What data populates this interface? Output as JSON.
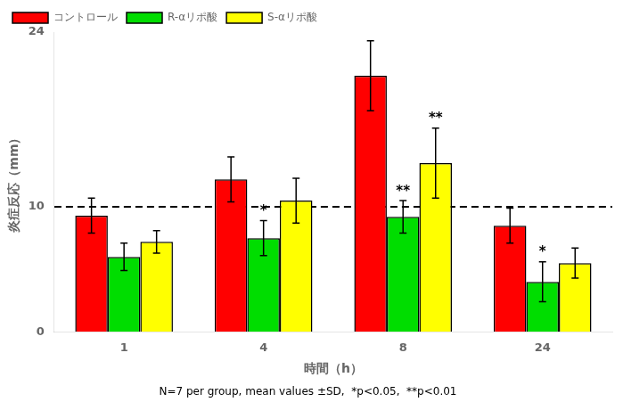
{
  "chart_data": {
    "type": "bar",
    "categories": [
      "1",
      "4",
      "8",
      "24"
    ],
    "series": [
      {
        "name": "コントロール",
        "color": "#ff0000",
        "values": [
          9.3,
          12.2,
          20.5,
          8.5
        ],
        "errors": [
          1.4,
          1.8,
          2.8,
          1.4
        ]
      },
      {
        "name": "R-αリポ酸",
        "color": "#00dd00",
        "values": [
          6.0,
          7.5,
          9.2,
          4.0
        ],
        "errors": [
          1.1,
          1.4,
          1.3,
          1.6
        ]
      },
      {
        "name": "S-αリポ酸",
        "color": "#ffff00",
        "values": [
          7.2,
          10.5,
          13.5,
          5.5
        ],
        "errors": [
          0.9,
          1.8,
          2.8,
          1.2
        ]
      }
    ],
    "annotations": [
      {
        "text": "*",
        "series": "R-αリポ酸",
        "category": "4"
      },
      {
        "text": "**",
        "series": "R-αリポ酸",
        "category": "8"
      },
      {
        "text": "**",
        "series": "S-αリポ酸",
        "category": "8"
      },
      {
        "text": "*",
        "series": "R-αリポ酸",
        "category": "24"
      }
    ],
    "hline": {
      "y": 10.0,
      "line_style": "dashed",
      "color": "#000000"
    },
    "xlabel": "時間（h）",
    "ylabel": "炎症反応（mm）",
    "footnote": "N=7 per group, mean values ±SD,  *p<0.05,  **p<0.01",
    "ylim": [
      0,
      24
    ],
    "yticks": [
      0,
      10,
      24
    ],
    "grid": false,
    "legend": "upper left"
  }
}
